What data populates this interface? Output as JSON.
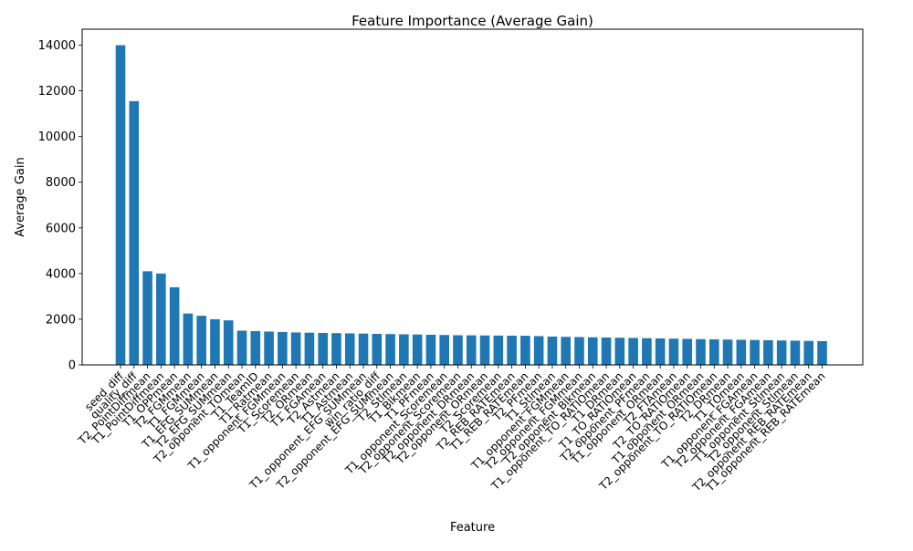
{
  "chart_data": {
    "type": "bar",
    "title": "Feature Importance (Average Gain)",
    "xlabel": "Feature",
    "ylabel": "Average Gain",
    "ylim": [
      0,
      14700
    ],
    "yticks": [
      0,
      2000,
      4000,
      6000,
      8000,
      10000,
      12000,
      14000
    ],
    "grid": false,
    "legend": "none",
    "bar_color": "#1f77b4",
    "categories": [
      "seed_diff",
      "quality_diff",
      "T2_PointDiffmean",
      "T1_PointDiffmean",
      "T1_OPPmean",
      "T2_FGMmean",
      "T1_FGMmean",
      "T1_EFG_SUMmean",
      "T2_EFG_SUMmean",
      "T2_opponent_TOmean",
      "T1_TeamID",
      "T1_Ratmean",
      "T1_opponent_FGMmean",
      "T1_Scoremean",
      "T2_ORmean",
      "T1_FGAmean",
      "T2_Astmean",
      "T1_Astmean",
      "T1_opponent_EFG_SUMmean",
      "win_ratio_diff",
      "T2_opponent_EFG_SUMmean",
      "T2_Stlmean",
      "T1_Blkmean",
      "T1_PFmean",
      "T1_opponent_Scoremean",
      "T2_opponent_Scoremean",
      "T2_opponent_DRmean",
      "T2_opponent_ORmean",
      "T2_Scoremean",
      "T2_REB_RATEmean",
      "T1_REB_RATEmean",
      "T2_PFmean",
      "T1_Stlmean",
      "T1_opponent_FGMmean",
      "T2_opponent_FGMmean",
      "T2_opponent_Blkmean",
      "T1_opponent_TO_RATIOmean",
      "T1_DRmean",
      "T1_TO_RATIOmean",
      "T2_opponent_PFmean",
      "T1_opponent_ORmean",
      "T2_FTAmean",
      "T2_TO_RATIOmean",
      "T1_opponent_ORmean",
      "T2_opponent_TO_RATIOmean",
      "T2_DRmean",
      "T1_TOmean",
      "T1_opponent_FGAmean",
      "T2_opponent_FGAmean",
      "T1_opponent_Stlmean",
      "T2_opponent_Stlmean",
      "T2_opponent_REB_RATEmean",
      "T1_opponent_REB_RATEmean"
    ],
    "values": [
      14000,
      11550,
      4100,
      4000,
      3400,
      2250,
      2150,
      2000,
      1950,
      1500,
      1480,
      1460,
      1440,
      1420,
      1410,
      1400,
      1390,
      1380,
      1370,
      1360,
      1350,
      1340,
      1330,
      1320,
      1310,
      1300,
      1295,
      1290,
      1285,
      1280,
      1275,
      1260,
      1240,
      1230,
      1220,
      1210,
      1200,
      1190,
      1180,
      1170,
      1160,
      1150,
      1140,
      1130,
      1120,
      1110,
      1100,
      1090,
      1080,
      1070,
      1060,
      1050,
      1040
    ]
  }
}
